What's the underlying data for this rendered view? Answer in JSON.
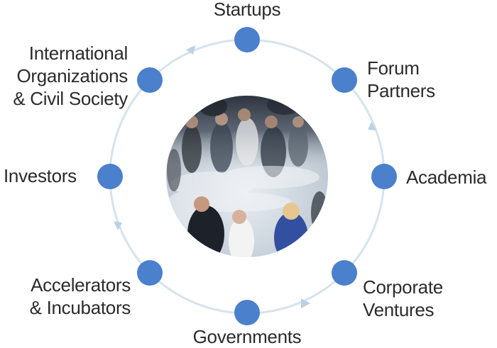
{
  "diagram": {
    "nodes": [
      {
        "id": "startups",
        "lines": [
          "Startups"
        ]
      },
      {
        "id": "forum-partners",
        "lines": [
          "Forum",
          "Partners"
        ]
      },
      {
        "id": "academia",
        "lines": [
          "Academia"
        ]
      },
      {
        "id": "corporate-ventures",
        "lines": [
          "Corporate",
          "Ventures"
        ]
      },
      {
        "id": "governments",
        "lines": [
          "Governments"
        ]
      },
      {
        "id": "accelerators-incubators",
        "lines": [
          "Accelerators",
          "& Incubators"
        ]
      },
      {
        "id": "investors",
        "lines": [
          "Investors"
        ]
      },
      {
        "id": "international-organizations",
        "lines": [
          "International",
          "Organizations",
          "& Civil Society"
        ]
      }
    ],
    "colors": {
      "node": "#4a80cc",
      "ring": "#d6e3ee",
      "arrow": "#b9d2e6",
      "text": "#2b2b2b"
    },
    "center_image": "crowd-photo"
  }
}
